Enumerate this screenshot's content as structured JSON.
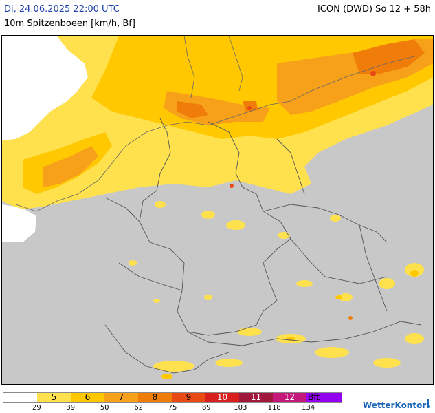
{
  "header": {
    "date": "Di, 24.06.2025 22:00 UTC",
    "model": "ICON (DWD) So 12 + 58h",
    "parameter": "10m Spitzenboeen [km/h, Bf]"
  },
  "legend": {
    "segments": [
      {
        "label": "",
        "color": "#ffffff"
      },
      {
        "label": "5",
        "color": "#ffe14d"
      },
      {
        "label": "6",
        "color": "#ffc800"
      },
      {
        "label": "7",
        "color": "#f7a11a"
      },
      {
        "label": "8",
        "color": "#f07d0a"
      },
      {
        "label": "9",
        "color": "#e94a14"
      },
      {
        "label": "10",
        "color": "#d91e1e"
      },
      {
        "label": "11",
        "color": "#a1183c"
      },
      {
        "label": "12",
        "color": "#c4187a"
      },
      {
        "label": "Bft",
        "color": "#9400f0"
      }
    ],
    "ticks": [
      "29",
      "39",
      "50",
      "62",
      "75",
      "89",
      "103",
      "118",
      "134"
    ]
  },
  "brand": {
    "name": "WetterKontor",
    "icon": "wetterkontor-logo-icon"
  },
  "colors": {
    "land_no_data": "#c8c8c8",
    "sea_calm": "#ffffff",
    "bft5": "#ffe14d",
    "bft6": "#ffc800",
    "bft7": "#f7a11a",
    "bft8": "#f07d0a",
    "bft9": "#e94a14",
    "bft10": "#d91e1e",
    "border_line": "#555555",
    "title_blue": "#1a3fa8"
  }
}
